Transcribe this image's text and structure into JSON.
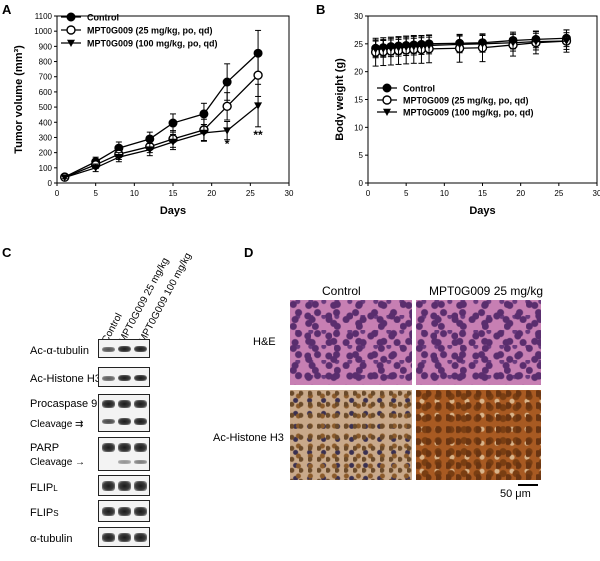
{
  "panels": {
    "A": "A",
    "B": "B",
    "C": "C",
    "D": "D"
  },
  "chart_data": [
    {
      "type": "line",
      "xlabel": "Days",
      "ylabel": "Tumor volume (mm³)",
      "xlim": [
        0,
        30
      ],
      "ylim": [
        0,
        1100
      ],
      "xticks": [
        0,
        5,
        10,
        15,
        20,
        25,
        30
      ],
      "yticks": [
        0,
        100,
        200,
        300,
        400,
        500,
        600,
        700,
        800,
        900,
        1000,
        1100
      ],
      "legend_position": "top-left",
      "annotations": [
        {
          "text": "*",
          "x": 22,
          "y": 230
        },
        {
          "text": "**",
          "x": 26,
          "y": 290
        }
      ],
      "series": [
        {
          "name": "Control",
          "marker": "filled-circle",
          "x": [
            1,
            5,
            8,
            12,
            15,
            19,
            22,
            26
          ],
          "y": [
            40,
            140,
            230,
            290,
            395,
            455,
            665,
            855
          ],
          "err": [
            8,
            30,
            40,
            45,
            60,
            70,
            120,
            150
          ]
        },
        {
          "name": "MPT0G009 (25 mg/kg, po, qd)",
          "marker": "open-circle",
          "x": [
            1,
            5,
            8,
            12,
            15,
            19,
            22,
            26
          ],
          "y": [
            38,
            120,
            190,
            240,
            290,
            350,
            505,
            710
          ],
          "err": [
            8,
            25,
            35,
            40,
            55,
            70,
            90,
            140
          ]
        },
        {
          "name": "MPT0G009 (100 mg/kg, po, qd)",
          "marker": "filled-triangle-down",
          "x": [
            1,
            5,
            8,
            12,
            15,
            19,
            22,
            26
          ],
          "y": [
            36,
            100,
            170,
            220,
            270,
            330,
            345,
            510
          ],
          "err": [
            8,
            25,
            30,
            40,
            50,
            55,
            60,
            140
          ]
        }
      ]
    },
    {
      "type": "line",
      "xlabel": "Days",
      "ylabel": "Body weight (g)",
      "xlim": [
        0,
        30
      ],
      "ylim": [
        0,
        30
      ],
      "xticks": [
        0,
        5,
        10,
        15,
        20,
        25,
        30
      ],
      "yticks": [
        0,
        5,
        10,
        15,
        20,
        25,
        30
      ],
      "legend_position": "center-left",
      "series": [
        {
          "name": "Control",
          "marker": "filled-circle",
          "x": [
            1,
            2,
            3,
            4,
            5,
            6,
            7,
            8,
            12,
            15,
            19,
            22,
            26
          ],
          "y": [
            24.2,
            24.3,
            24.5,
            24.6,
            24.7,
            24.8,
            24.9,
            25.0,
            25.1,
            25.2,
            25.6,
            25.8,
            26.0
          ],
          "err": [
            1.5,
            1.5,
            1.5,
            1.5,
            1.5,
            1.5,
            1.5,
            1.5,
            1.5,
            1.5,
            1.5,
            1.5,
            1.5
          ]
        },
        {
          "name": "MPT0G009 (25 mg/kg, po, qd)",
          "marker": "open-circle",
          "x": [
            1,
            2,
            3,
            4,
            5,
            6,
            7,
            8,
            12,
            15,
            19,
            22,
            26
          ],
          "y": [
            23.5,
            23.6,
            23.7,
            23.8,
            23.9,
            24.0,
            24.0,
            24.1,
            24.2,
            24.3,
            24.8,
            25.2,
            25.5
          ],
          "err": [
            2.5,
            2.5,
            2.5,
            2.5,
            2.5,
            2.5,
            2.5,
            2.5,
            2.5,
            2.5,
            2.0,
            2.0,
            2.0
          ]
        },
        {
          "name": "MPT0G009 (100 mg/kg, po, qd)",
          "marker": "filled-triangle-down",
          "x": [
            1,
            2,
            3,
            4,
            5,
            6,
            7,
            8,
            12,
            15,
            19,
            22,
            26
          ],
          "y": [
            24.0,
            24.1,
            24.2,
            24.3,
            24.4,
            24.5,
            24.6,
            24.7,
            24.9,
            25.0,
            25.2,
            25.4,
            25.5
          ],
          "err": [
            1.5,
            1.5,
            1.5,
            1.5,
            1.5,
            1.5,
            1.5,
            1.5,
            1.5,
            1.5,
            1.5,
            1.5,
            1.5
          ]
        }
      ]
    }
  ],
  "western_blot": {
    "lanes": [
      "Control",
      "MPT0G009 25 mg/kg",
      "MPT0G009 100 mg/kg"
    ],
    "rows": [
      {
        "label": "Ac-α-tubulin"
      },
      {
        "label": "Ac-Histone H3"
      },
      {
        "label": "Procaspase 9",
        "sub_label": "Cleavage ⇉"
      },
      {
        "label": "PARP",
        "sub_label": "Cleavage →"
      },
      {
        "label": "FLIP",
        "subscript": "L"
      },
      {
        "label": "FLIP",
        "subscript": "S"
      },
      {
        "label": "α-tubulin"
      }
    ]
  },
  "histology": {
    "col_headers": [
      "Control",
      "MPT0G009 25 mg/kg"
    ],
    "row_labels": [
      "H&E",
      "Ac-Histone H3"
    ],
    "scale_bar": "50 μm"
  }
}
